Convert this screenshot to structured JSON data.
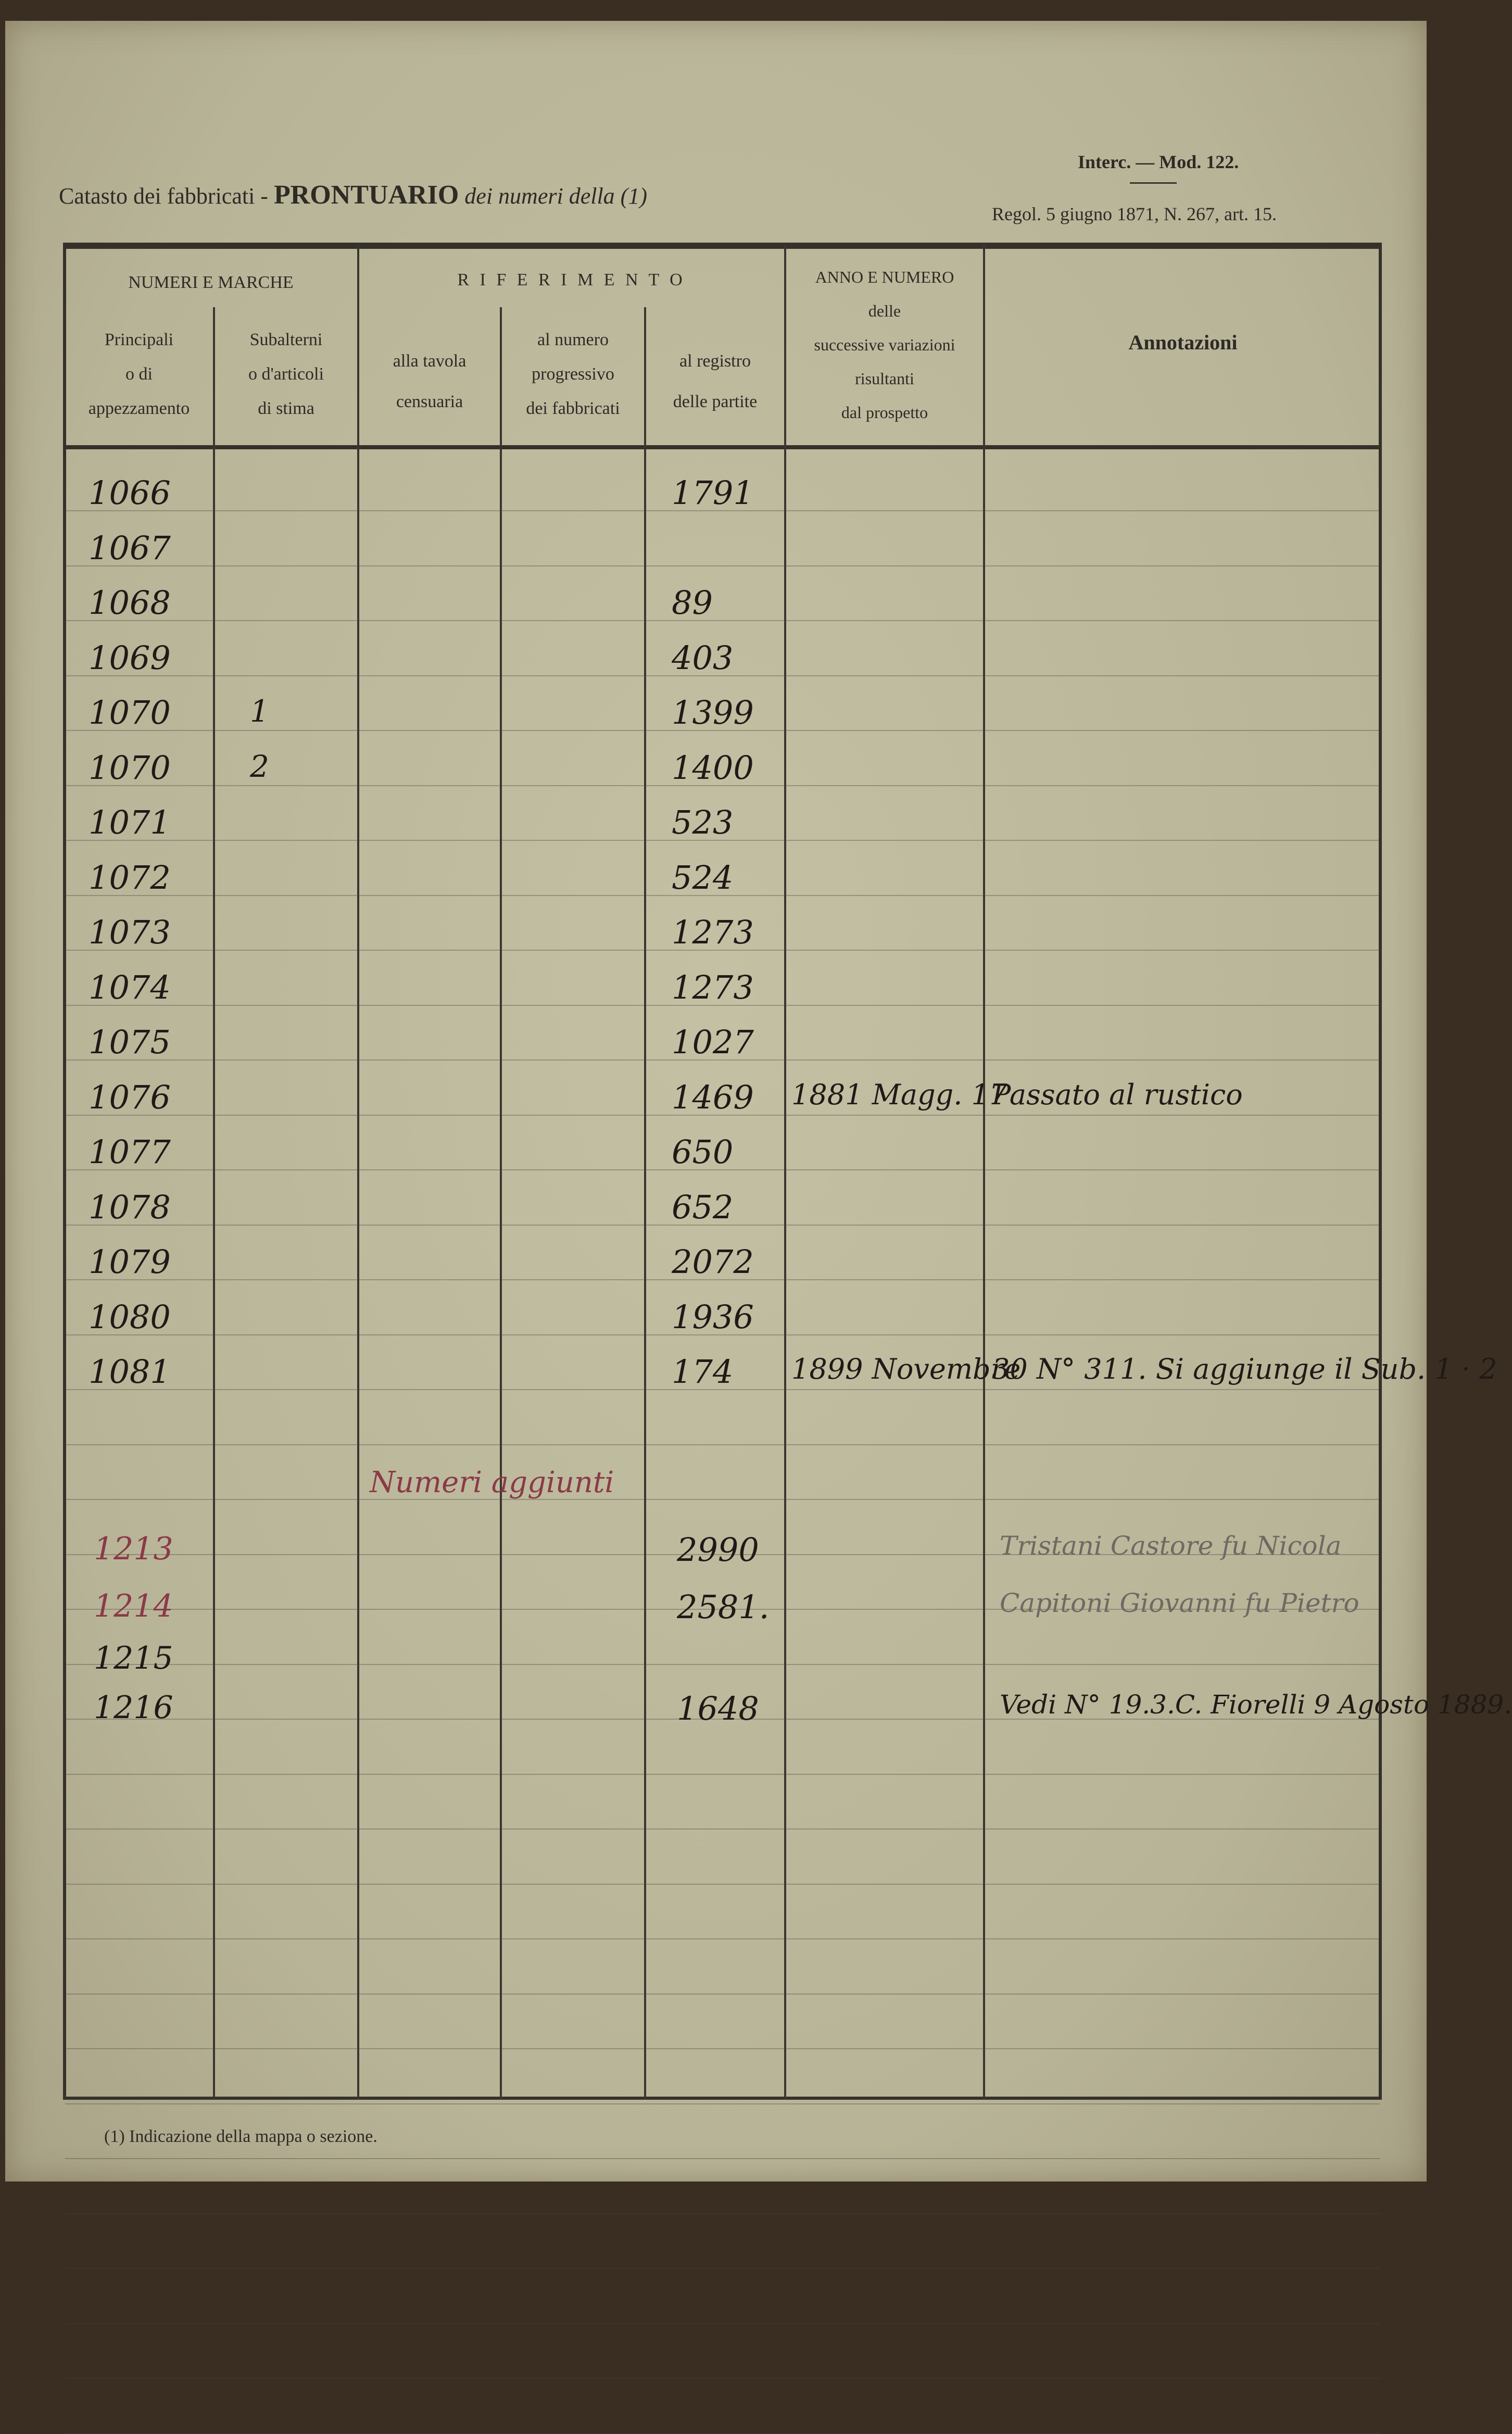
{
  "header": {
    "title_left": "Catasto dei fabbricati -",
    "title_main": "PRONTUARIO",
    "title_right": "dei numeri della (1)",
    "model": "Interc. — Mod. 122.",
    "regulation": "Regol. 5 giugno 1871, N. 267, art. 15."
  },
  "table": {
    "group_numeri": "NUMERI E MARCHE",
    "group_riferimento": "R I F E R I M E N T O",
    "col_principali": "Principali\no di\nappezzamento",
    "col_subalterni": "Subalterni\no d'articoli\ndi stima",
    "col_tavola": "alla tavola\ncensuaria",
    "col_progressivo": "al numero\nprogressivo\ndei fabbricati",
    "col_registro": "al registro\ndelle partite",
    "col_variazioni": "ANNO E NUMERO\ndelle\nsuccessive variazioni\nrisultanti\ndal prospetto",
    "col_annotazioni": "Annotazioni",
    "rows": [
      {
        "principale": "1066",
        "sub": "",
        "registro": "1791",
        "variazioni": "",
        "annotazioni": ""
      },
      {
        "principale": "1067",
        "sub": "",
        "registro": "",
        "variazioni": "",
        "annotazioni": ""
      },
      {
        "principale": "1068",
        "sub": "",
        "registro": "89",
        "variazioni": "",
        "annotazioni": ""
      },
      {
        "principale": "1069",
        "sub": "",
        "registro": "403",
        "variazioni": "",
        "annotazioni": ""
      },
      {
        "principale": "1070",
        "sub": "1",
        "registro": "1399",
        "variazioni": "",
        "annotazioni": ""
      },
      {
        "principale": "1070",
        "sub": "2",
        "registro": "1400",
        "variazioni": "",
        "annotazioni": ""
      },
      {
        "principale": "1071",
        "sub": "",
        "registro": "523",
        "variazioni": "",
        "annotazioni": ""
      },
      {
        "principale": "1072",
        "sub": "",
        "registro": "524",
        "variazioni": "",
        "annotazioni": ""
      },
      {
        "principale": "1073",
        "sub": "",
        "registro": "1273",
        "variazioni": "",
        "annotazioni": ""
      },
      {
        "principale": "1074",
        "sub": "",
        "registro": "1273",
        "variazioni": "",
        "annotazioni": ""
      },
      {
        "principale": "1075",
        "sub": "",
        "registro": "1027",
        "variazioni": "",
        "annotazioni": ""
      },
      {
        "principale": "1076",
        "sub": "",
        "registro": "1469",
        "variazioni": "1881 Magg. 17",
        "annotazioni": "Passato al rustico"
      },
      {
        "principale": "1077",
        "sub": "",
        "registro": "650",
        "variazioni": "",
        "annotazioni": ""
      },
      {
        "principale": "1078",
        "sub": "",
        "registro": "652",
        "variazioni": "",
        "annotazioni": ""
      },
      {
        "principale": "1079",
        "sub": "",
        "registro": "2072",
        "variazioni": "",
        "annotazioni": ""
      },
      {
        "principale": "1080",
        "sub": "",
        "registro": "1936",
        "variazioni": "",
        "annotazioni": ""
      },
      {
        "principale": "1081",
        "sub": "",
        "registro": "174",
        "variazioni": "1899 Novembre",
        "annotazioni": "30 N° 311. Si aggiunge il Sub. 1 · 2"
      }
    ],
    "added_label": "Numeri aggiunti",
    "added_rows": [
      {
        "principale": "1213",
        "registro": "2990",
        "annotazioni": "Tristani Castore fu Nicola"
      },
      {
        "principale": "1214",
        "registro": "2581.",
        "annotazioni": "Capitoni Giovanni fu Pietro"
      },
      {
        "principale": "1215",
        "registro": "",
        "annotazioni": ""
      },
      {
        "principale": "1216",
        "registro": "1648",
        "annotazioni": "Vedi N° 19.3.C. Fiorelli 9 Agosto 1889."
      }
    ]
  },
  "footnote": "(1) Indicazione della mappa o sezione.",
  "colors": {
    "paper": "#bcb89c",
    "ink": "#1f1a16",
    "red_ink": "#8a3a48",
    "pencil": "#6e6a62"
  }
}
